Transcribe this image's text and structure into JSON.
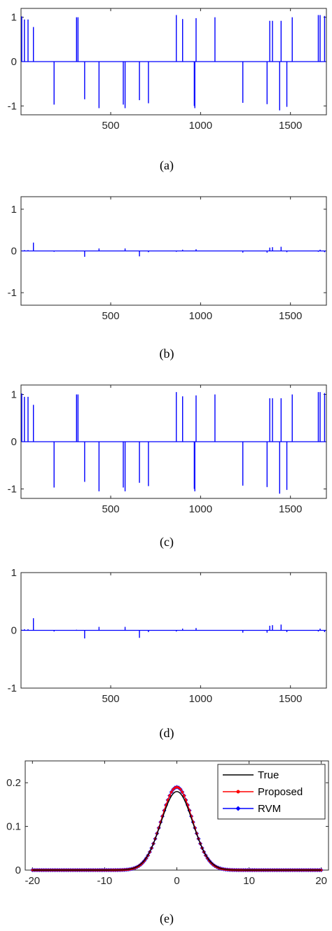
{
  "chart_data": [
    {
      "type": "line",
      "subplot": "(a)",
      "caption": "(a)",
      "xlim": [
        1,
        1700
      ],
      "ylim": [
        -1.2,
        1.2
      ],
      "xticks": [
        500,
        1000,
        1500
      ],
      "yticks": [
        -1,
        0,
        1
      ],
      "color": "#0000ff",
      "spikes": [
        [
          5,
          1.02
        ],
        [
          20,
          0.95
        ],
        [
          40,
          0.95
        ],
        [
          70,
          0.78
        ],
        [
          185,
          -0.97
        ],
        [
          310,
          1.0
        ],
        [
          318,
          1.0
        ],
        [
          355,
          -0.85
        ],
        [
          435,
          -1.05
        ],
        [
          570,
          -0.97
        ],
        [
          580,
          -1.05
        ],
        [
          660,
          -0.87
        ],
        [
          710,
          -0.94
        ],
        [
          865,
          1.05
        ],
        [
          900,
          0.96
        ],
        [
          965,
          -1.0
        ],
        [
          968,
          -1.05
        ],
        [
          975,
          0.98
        ],
        [
          1080,
          1.0
        ],
        [
          1235,
          -0.93
        ],
        [
          1370,
          -0.96
        ],
        [
          1385,
          0.92
        ],
        [
          1400,
          0.92
        ],
        [
          1440,
          -1.1
        ],
        [
          1448,
          0.92
        ],
        [
          1480,
          -1.02
        ],
        [
          1510,
          1.0
        ],
        [
          1655,
          1.05
        ],
        [
          1665,
          1.05
        ],
        [
          1690,
          1.03
        ]
      ]
    },
    {
      "type": "line",
      "subplot": "(b)",
      "caption": "(b)",
      "xlim": [
        1,
        1700
      ],
      "ylim": [
        -1.3,
        1.3
      ],
      "xticks": [
        500,
        1000,
        1500
      ],
      "yticks": [
        -1,
        0,
        1
      ],
      "color": "#0000ff",
      "spikes": [
        [
          5,
          0.01
        ],
        [
          20,
          0.02
        ],
        [
          40,
          0.02
        ],
        [
          70,
          0.2
        ],
        [
          185,
          -0.02
        ],
        [
          310,
          0.01
        ],
        [
          355,
          -0.14
        ],
        [
          435,
          0.06
        ],
        [
          580,
          0.06
        ],
        [
          660,
          -0.13
        ],
        [
          710,
          -0.03
        ],
        [
          865,
          -0.02
        ],
        [
          900,
          0.03
        ],
        [
          975,
          0.04
        ],
        [
          1235,
          -0.04
        ],
        [
          1370,
          -0.04
        ],
        [
          1385,
          0.08
        ],
        [
          1400,
          0.09
        ],
        [
          1448,
          0.1
        ],
        [
          1480,
          -0.03
        ],
        [
          1655,
          -0.02
        ],
        [
          1665,
          0.03
        ],
        [
          1690,
          -0.03
        ]
      ]
    },
    {
      "type": "line",
      "subplot": "(c)",
      "caption": "(c)",
      "xlim": [
        1,
        1700
      ],
      "ylim": [
        -1.2,
        1.2
      ],
      "xticks": [
        500,
        1000,
        1500
      ],
      "yticks": [
        -1,
        0,
        1
      ],
      "color": "#0000ff",
      "spikes": [
        [
          5,
          1.02
        ],
        [
          20,
          0.95
        ],
        [
          40,
          0.95
        ],
        [
          70,
          0.78
        ],
        [
          185,
          -0.97
        ],
        [
          310,
          1.0
        ],
        [
          318,
          1.0
        ],
        [
          355,
          -0.85
        ],
        [
          435,
          -1.05
        ],
        [
          570,
          -0.97
        ],
        [
          580,
          -1.05
        ],
        [
          660,
          -0.87
        ],
        [
          710,
          -0.94
        ],
        [
          865,
          1.05
        ],
        [
          900,
          0.96
        ],
        [
          965,
          -1.0
        ],
        [
          968,
          -1.05
        ],
        [
          975,
          0.98
        ],
        [
          1080,
          1.0
        ],
        [
          1235,
          -0.93
        ],
        [
          1370,
          -0.96
        ],
        [
          1385,
          0.92
        ],
        [
          1400,
          0.92
        ],
        [
          1440,
          -1.1
        ],
        [
          1448,
          0.92
        ],
        [
          1480,
          -1.02
        ],
        [
          1510,
          1.0
        ],
        [
          1655,
          1.05
        ],
        [
          1665,
          1.05
        ],
        [
          1690,
          1.03
        ]
      ]
    },
    {
      "type": "line",
      "subplot": "(d)",
      "caption": "(d)",
      "xlim": [
        1,
        1700
      ],
      "ylim": [
        -1,
        1
      ],
      "xticks": [
        500,
        1000,
        1500
      ],
      "yticks": [
        -1,
        0,
        1
      ],
      "color": "#0000ff",
      "spikes": [
        [
          5,
          0.01
        ],
        [
          20,
          0.02
        ],
        [
          40,
          0.02
        ],
        [
          70,
          0.21
        ],
        [
          185,
          -0.02
        ],
        [
          310,
          0.01
        ],
        [
          355,
          -0.14
        ],
        [
          435,
          0.06
        ],
        [
          580,
          0.06
        ],
        [
          660,
          -0.13
        ],
        [
          710,
          -0.03
        ],
        [
          865,
          -0.02
        ],
        [
          900,
          0.03
        ],
        [
          975,
          0.04
        ],
        [
          1235,
          -0.04
        ],
        [
          1370,
          -0.04
        ],
        [
          1385,
          0.08
        ],
        [
          1400,
          0.09
        ],
        [
          1448,
          0.1
        ],
        [
          1480,
          -0.03
        ],
        [
          1655,
          -0.02
        ],
        [
          1665,
          0.03
        ],
        [
          1690,
          -0.03
        ]
      ]
    },
    {
      "type": "line",
      "subplot": "(e)",
      "caption": "(e)",
      "xlim": [
        -21,
        21
      ],
      "ylim": [
        0,
        0.25
      ],
      "xticks": [
        -20,
        -10,
        0,
        10,
        20
      ],
      "yticks": [
        0,
        0.1,
        0.2
      ],
      "legend_position": "top-right",
      "series": [
        {
          "name": "True",
          "color": "#000000",
          "marker": "none",
          "peak": 0.18,
          "sigma": 2.2
        },
        {
          "name": "Proposed",
          "color": "#ff0000",
          "marker": "dot",
          "peak": 0.19,
          "sigma": 2.15
        },
        {
          "name": "RVM",
          "color": "#0000ff",
          "marker": "diamond",
          "peak": 0.19,
          "sigma": 2.15
        }
      ],
      "x_start": -20,
      "x_end": 20,
      "x_step": 0.25
    }
  ]
}
